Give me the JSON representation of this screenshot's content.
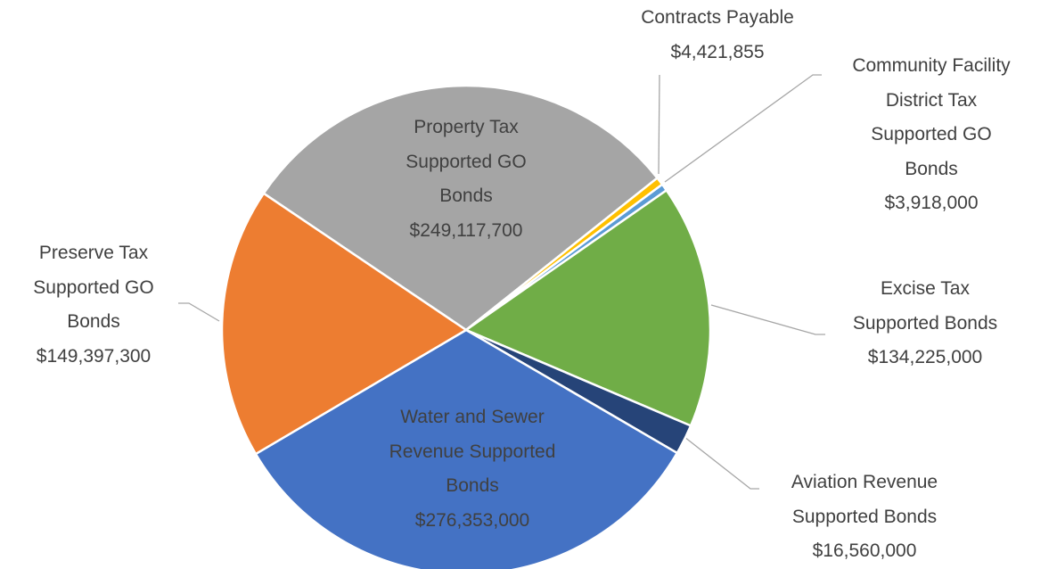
{
  "chart_data": {
    "type": "pie",
    "categories": [
      "Property Tax\nSupported GO\nBonds",
      "Contracts Payable",
      "Community Facility\nDistrict Tax\nSupported GO\nBonds",
      "Excise Tax\nSupported Bonds",
      "Aviation Revenue\nSupported Bonds",
      "Water and Sewer\nRevenue Supported\nBonds",
      "Preserve Tax\nSupported GO\nBonds"
    ],
    "values": [
      249117700,
      4421855,
      3918000,
      134225000,
      16560000,
      276353000,
      149397300
    ],
    "value_labels": [
      "$249,117,700",
      "$4,421,855",
      "$3,918,000",
      "$134,225,000",
      "$16,560,000",
      "$276,353,000",
      "$149,397,300"
    ],
    "colors": [
      "#a5a5a5",
      "#ffc000",
      "#5b9bd5",
      "#70ad47",
      "#264478",
      "#4472c4",
      "#ed7d31"
    ]
  }
}
